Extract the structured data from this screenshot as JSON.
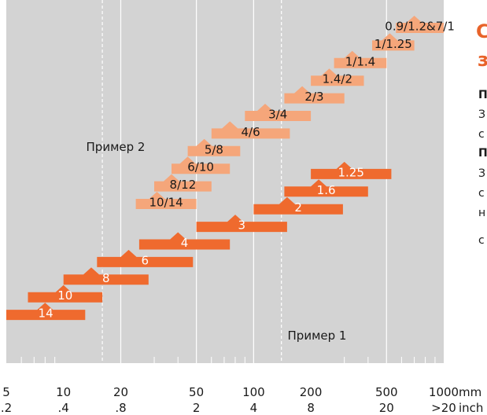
{
  "chart_data": {
    "type": "bar",
    "x_axis": {
      "scale": "log",
      "range_mm": [
        5,
        1000
      ],
      "mm_ticks": [
        {
          "value": 5,
          "label": "5"
        },
        {
          "value": 10,
          "label": "10"
        },
        {
          "value": 20,
          "label": "20"
        },
        {
          "value": 50,
          "label": "50"
        },
        {
          "value": 100,
          "label": "100"
        },
        {
          "value": 200,
          "label": "200"
        },
        {
          "value": 500,
          "label": "500"
        },
        {
          "value": 1000,
          "label": "1000"
        }
      ],
      "inch_ticks": [
        {
          "value": 5,
          "label": ".2"
        },
        {
          "value": 10,
          "label": ".4"
        },
        {
          "value": 20,
          "label": ".8"
        },
        {
          "value": 50,
          "label": "2"
        },
        {
          "value": 100,
          "label": "4"
        },
        {
          "value": 200,
          "label": "8"
        },
        {
          "value": 500,
          "label": "20"
        },
        {
          "value": 1000,
          "label": ">20"
        }
      ],
      "mm_unit": "mm",
      "inch_unit": "inch",
      "gridlines": [
        20,
        50,
        100,
        500
      ],
      "dashed_lines": [
        16,
        140
      ]
    },
    "series": [
      {
        "color": "#f5a67a",
        "bars": [
          {
            "label": "0.9/1.2&7/1",
            "start": 560,
            "end": 1000,
            "peak": 700
          },
          {
            "label": "1/1.25",
            "start": 420,
            "end": 700,
            "peak": 520
          },
          {
            "label": "1/1.4",
            "start": 265,
            "end": 500,
            "peak": 330
          },
          {
            "label": "1.4/2",
            "start": 200,
            "end": 380,
            "peak": 250
          },
          {
            "label": "2/3",
            "start": 145,
            "end": 300,
            "peak": 180
          },
          {
            "label": "3/4",
            "start": 90,
            "end": 200,
            "peak": 115
          },
          {
            "label": "4/6",
            "start": 60,
            "end": 155,
            "peak": 75
          },
          {
            "label": "5/8",
            "start": 45,
            "end": 85,
            "peak": 55
          },
          {
            "label": "6/10",
            "start": 37,
            "end": 75,
            "peak": 45
          },
          {
            "label": "8/12",
            "start": 30,
            "end": 60,
            "peak": 37
          },
          {
            "label": "10/14",
            "start": 24,
            "end": 50,
            "peak": 31
          }
        ]
      },
      {
        "color": "#ef6a2e",
        "bars": [
          {
            "label": "1.25",
            "start": 200,
            "end": 530,
            "peak": 300
          },
          {
            "label": "1.6",
            "start": 145,
            "end": 400,
            "peak": 220
          },
          {
            "label": "2",
            "start": 100,
            "end": 295,
            "peak": 150
          },
          {
            "label": "3",
            "start": 50,
            "end": 150,
            "peak": 80
          },
          {
            "label": "4",
            "start": 25,
            "end": 75,
            "peak": 40
          },
          {
            "label": "6",
            "start": 15,
            "end": 48,
            "peak": 22
          },
          {
            "label": "8",
            "start": 10,
            "end": 28,
            "peak": 14
          },
          {
            "label": "10",
            "start": 6.5,
            "end": 16,
            "peak": 10
          },
          {
            "label": "14",
            "start": 5,
            "end": 13,
            "peak": 8
          }
        ]
      }
    ],
    "annotations": [
      {
        "text": "Пример 2"
      },
      {
        "text": "Пример 1"
      }
    ]
  },
  "side_panel": {
    "title_line1": "С",
    "title_line2": "з",
    "heading1": "П",
    "text1_line1": "З",
    "text1_line2": "с",
    "heading2": "П",
    "text2_line1": "З",
    "text2_line2": "с",
    "text2_line3": "н",
    "text2_line4": "с"
  }
}
